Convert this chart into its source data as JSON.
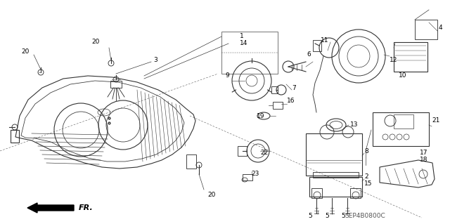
{
  "bg_color": "#ffffff",
  "diagram_code": "SEP4B0800C",
  "fr_label": "FR.",
  "gc": "#333333",
  "lw": 0.8
}
